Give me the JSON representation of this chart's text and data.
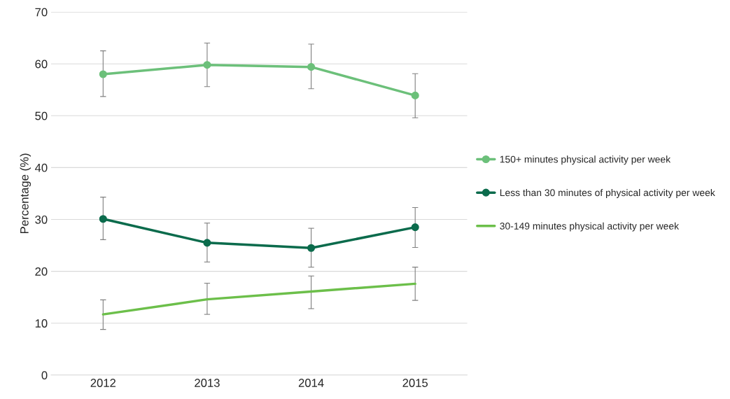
{
  "chart_data": {
    "type": "line",
    "ylabel": "Percentage (%)",
    "categories": [
      "2012",
      "2013",
      "2014",
      "2015"
    ],
    "ylim": [
      0,
      70
    ],
    "yticks": [
      0,
      10,
      20,
      30,
      40,
      50,
      60,
      70
    ],
    "grid": "y",
    "legend": "right",
    "line_style": "solid",
    "series": [
      {
        "name": "150+ minutes physical activity per week",
        "color": "#6cc07a",
        "marker": "circle",
        "values": [
          58.0,
          59.8,
          59.4,
          53.9
        ],
        "errors": [
          [
            53.7,
            62.5
          ],
          [
            55.6,
            64.0
          ],
          [
            55.2,
            63.8
          ],
          [
            49.6,
            58.1
          ]
        ]
      },
      {
        "name": "Less than 30 minutes of physical activity per week",
        "color": "#0b6b4c",
        "marker": "circle",
        "values": [
          30.1,
          25.5,
          24.5,
          28.5
        ],
        "errors": [
          [
            26.1,
            34.3
          ],
          [
            21.8,
            29.3
          ],
          [
            20.8,
            28.3
          ],
          [
            24.6,
            32.3
          ]
        ]
      },
      {
        "name": "30-149 minutes physical activity per week",
        "color": "#6cbf4a",
        "marker": "none",
        "values": [
          11.7,
          14.6,
          16.1,
          17.6
        ],
        "errors": [
          [
            8.8,
            14.5
          ],
          [
            11.7,
            17.7
          ],
          [
            12.8,
            19.1
          ],
          [
            14.4,
            20.8
          ]
        ]
      }
    ]
  }
}
